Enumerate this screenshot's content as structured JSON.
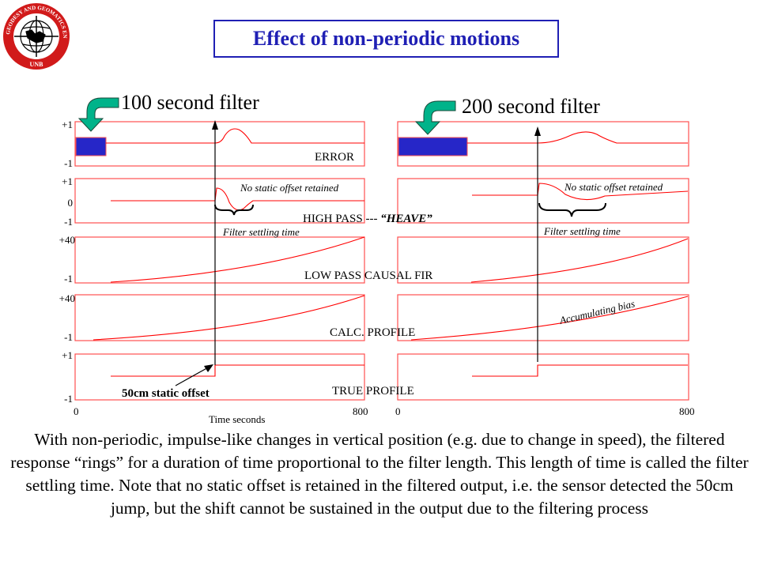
{
  "title": "Effect of non-periodic motions",
  "logo": {
    "ring_text": "GEODESY AND GEOMATICS ENGINEERING",
    "bottom_text": "UNB"
  },
  "filters": {
    "left": "100 second filter",
    "right": "200 second filter"
  },
  "rows": {
    "error": "ERROR",
    "high_pass": "HIGH PASS ---",
    "heave": "“HEAVE”",
    "low_pass": "LOW PASS CAUSAL FIR",
    "calc_profile": "CALC. PROFILE",
    "true_profile": "TRUE PROFILE"
  },
  "y_ticks": {
    "error_top": "+1",
    "error_bottom": "-1",
    "hp_top": "+1",
    "hp_zero": "0",
    "hp_bottom": "-1",
    "lp_top": "+40",
    "lp_bottom": "-1",
    "calc_top": "+40",
    "calc_bottom": "-1",
    "true_top": "+1",
    "true_bottom": "-1"
  },
  "annotations": {
    "no_static_offset": "No static offset retained",
    "filter_settling": "Filter settling time",
    "accumulating_bias": "Accumulating bias",
    "static_offset": "50cm static offset"
  },
  "x_axis": {
    "left_min": "0",
    "left_max": "800",
    "right_min": "0",
    "right_max": "800",
    "label": "Time seconds"
  },
  "caption": "With non-periodic, impulse-like changes in vertical position (e.g. due to change in speed), the filtered response “rings” for a duration of time proportional to the filter length.  This length of time is called the filter settling time.  Note that no static offset is retained in the filtered output, i.e. the sensor detected the 50cm jump, but the shift cannot be sustained in the output due to the filtering process",
  "colors": {
    "title": "#1f1fb4",
    "panel_border": "#ff5050",
    "signal": "#ff0000",
    "filter_window": "#2626c8",
    "arrow": "#00b38a",
    "logo_red": "#d11a1a"
  }
}
